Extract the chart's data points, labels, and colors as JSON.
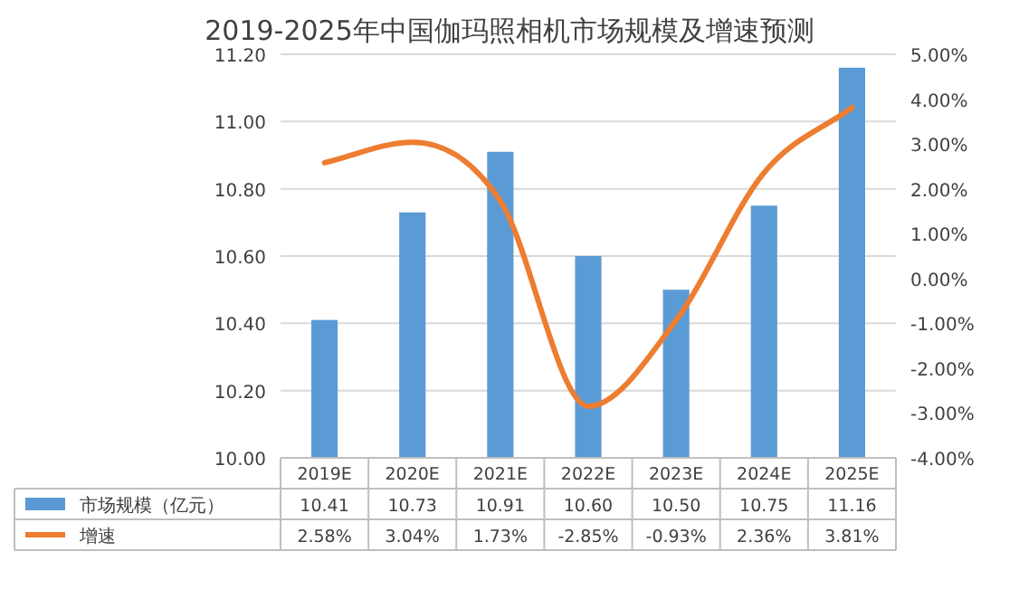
{
  "chart_data": {
    "type": "bar",
    "title": "2019-2025年中国伽玛照相机市场规模及增速预测",
    "categories": [
      "2019E",
      "2020E",
      "2021E",
      "2022E",
      "2023E",
      "2024E",
      "2025E"
    ],
    "series": [
      {
        "name": "市场规模（亿元）",
        "color": "#5b9bd5",
        "values": [
          10.41,
          10.73,
          10.91,
          10.6,
          10.5,
          10.75,
          11.16
        ],
        "value_labels": [
          "10.41",
          "10.73",
          "10.91",
          "10.60",
          "10.50",
          "10.75",
          "11.16"
        ]
      },
      {
        "name": "增速",
        "type": "line",
        "axis": "y2",
        "color": "#ed7d31",
        "values": [
          2.58,
          3.04,
          1.73,
          -2.85,
          -0.93,
          2.36,
          3.81
        ],
        "value_labels": [
          "2.58%",
          "3.04%",
          "1.73%",
          "-2.85%",
          "-0.93%",
          "2.36%",
          "3.81%"
        ]
      }
    ],
    "ylim": [
      10,
      11.2
    ],
    "yticks": [
      {
        "value": 10,
        "label": "10.00"
      },
      {
        "value": 10.2,
        "label": "10.20"
      },
      {
        "value": 10.4,
        "label": "10.40"
      },
      {
        "value": 10.6,
        "label": "10.60"
      },
      {
        "value": 10.8,
        "label": "10.80"
      },
      {
        "value": 11,
        "label": "11.00"
      },
      {
        "value": 11.2,
        "label": "11.20"
      }
    ],
    "y2lim": [
      -4,
      5
    ],
    "y2ticks": [
      {
        "value": -4,
        "label": "-4.00%"
      },
      {
        "value": -3,
        "label": "-3.00%"
      },
      {
        "value": -2,
        "label": "-2.00%"
      },
      {
        "value": -1,
        "label": "-1.00%"
      },
      {
        "value": 0,
        "label": "0.00%"
      },
      {
        "value": 1,
        "label": "1.00%"
      },
      {
        "value": 2,
        "label": "2.00%"
      },
      {
        "value": 3,
        "label": "3.00%"
      },
      {
        "value": 4,
        "label": "4.00%"
      },
      {
        "value": 5,
        "label": "5.00%"
      }
    ],
    "grid": "y",
    "legend": "bottom",
    "marker": "none",
    "line_style": "solid"
  }
}
